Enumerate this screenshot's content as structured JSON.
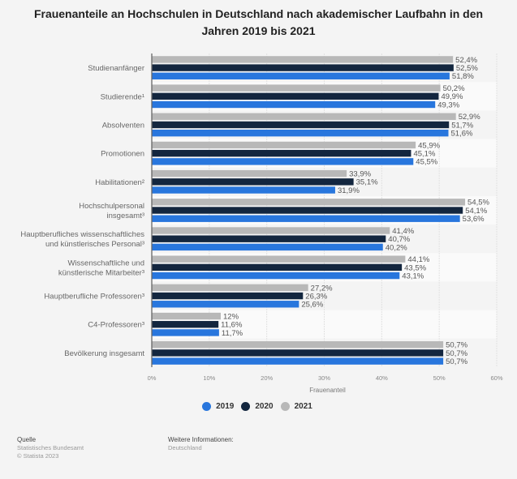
{
  "title": "Frauenanteile an Hochschulen in Deutschland nach akademischer Laufbahn in den Jahren 2019 bis 2021",
  "title_lines": [
    "Frauenanteile an Hochschulen in Deutschland nach akademischer Laufbahn in den",
    "Jahren 2019 bis 2021"
  ],
  "chart_data": {
    "type": "bar",
    "orientation": "horizontal",
    "title": "Frauenanteile an Hochschulen in Deutschland nach akademischer Laufbahn in den Jahren 2019 bis 2021",
    "xlabel": "Frauenanteil",
    "ylabel": "",
    "xlim": [
      0,
      60
    ],
    "x_ticks": [
      0,
      10,
      20,
      30,
      40,
      50,
      60
    ],
    "x_tick_labels": [
      "0%",
      "10%",
      "20%",
      "30%",
      "40%",
      "50%",
      "60%"
    ],
    "grid": true,
    "legend_position": "bottom",
    "categories": [
      [
        "Studienanfänger"
      ],
      [
        "Studierende¹"
      ],
      [
        "Absolventen"
      ],
      [
        "Promotionen"
      ],
      [
        "Habilitationen²"
      ],
      [
        "Hochschulpersonal",
        "insgesamt³"
      ],
      [
        "Hauptberufliches wissenschaftliches",
        "und künstlerisches Personal³"
      ],
      [
        "Wissenschaftliche und",
        "künstlerische Mitarbeiter³"
      ],
      [
        "Hauptberufliche Professoren³"
      ],
      [
        "C4-Professoren³"
      ],
      [
        "Bevölkerung insgesamt"
      ]
    ],
    "series": [
      {
        "name": "2021",
        "color": "#b8b8b8",
        "values": [
          52.4,
          50.2,
          52.9,
          45.9,
          33.9,
          54.5,
          41.4,
          44.1,
          27.2,
          12,
          50.7
        ],
        "labels": [
          "52,4%",
          "50,2%",
          "52,9%",
          "45,9%",
          "33,9%",
          "54,5%",
          "41,4%",
          "44,1%",
          "27,2%",
          "12%",
          "50,7%"
        ]
      },
      {
        "name": "2020",
        "color": "#13263f",
        "values": [
          52.5,
          49.9,
          51.7,
          45.1,
          35.1,
          54.1,
          40.7,
          43.5,
          26.3,
          11.6,
          50.7
        ],
        "labels": [
          "52,5%",
          "49,9%",
          "51,7%",
          "45,1%",
          "35,1%",
          "54,1%",
          "40,7%",
          "43,5%",
          "26,3%",
          "11,6%",
          "50,7%"
        ]
      },
      {
        "name": "2019",
        "color": "#2876dd",
        "values": [
          51.8,
          49.3,
          51.6,
          45.5,
          31.9,
          53.6,
          40.2,
          43.1,
          25.6,
          11.7,
          50.7
        ],
        "labels": [
          "51,8%",
          "49,3%",
          "51,6%",
          "45,5%",
          "31,9%",
          "53,6%",
          "40,2%",
          "43,1%",
          "25,6%",
          "11,7%",
          "50,7%"
        ]
      }
    ]
  },
  "legend": [
    {
      "label": "2019",
      "color": "#2876dd"
    },
    {
      "label": "2020",
      "color": "#13263f"
    },
    {
      "label": "2021",
      "color": "#b8b8b8"
    }
  ],
  "footer": {
    "source_heading": "Quelle",
    "source_lines": [
      "Statistisches Bundesamt",
      "© Statista 2023"
    ],
    "info_heading": "Weitere Informationen:",
    "info_lines": [
      "Deutschland"
    ]
  }
}
